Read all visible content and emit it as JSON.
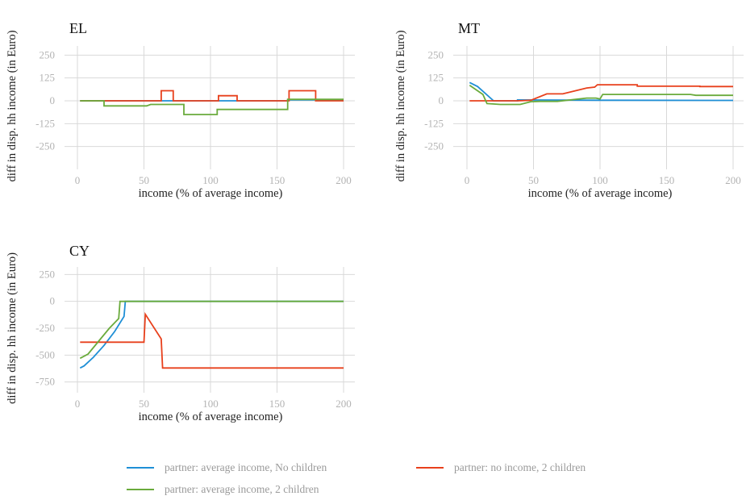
{
  "chart_data": [
    {
      "type": "line",
      "title": "EL",
      "xlabel": "income (% of average income)",
      "ylabel": "diff in disp. hh income (in Euro)",
      "xlim": [
        0,
        200
      ],
      "ylim": [
        -375,
        300
      ],
      "xticks": [
        0,
        50,
        100,
        150,
        200
      ],
      "yticks": [
        250,
        125,
        0,
        -125,
        -250
      ],
      "grid": true,
      "series": [
        {
          "name": "partner: average income, No children",
          "color": "#1f8fd6",
          "x": [
            2,
            158,
            158,
            200
          ],
          "y": [
            0,
            0,
            5,
            5
          ]
        },
        {
          "name": "partner: no income, 2 children",
          "color": "#e8401c",
          "x": [
            2,
            63,
            63,
            72,
            72,
            106,
            106,
            120,
            120,
            159,
            159,
            179,
            179,
            200
          ],
          "y": [
            0,
            0,
            55,
            55,
            0,
            0,
            28,
            28,
            0,
            0,
            55,
            55,
            0,
            0
          ]
        },
        {
          "name": "partner: average income, 2 children",
          "color": "#6aab3c",
          "x": [
            2,
            20,
            20,
            52,
            55,
            80,
            80,
            105,
            105,
            158,
            158,
            200
          ],
          "y": [
            0,
            0,
            -28,
            -28,
            -20,
            -20,
            -75,
            -75,
            -47,
            -47,
            8,
            8
          ]
        }
      ]
    },
    {
      "type": "line",
      "title": "MT",
      "xlabel": "income (% of average income)",
      "ylabel": "diff in disp. hh income (in Euro)",
      "xlim": [
        0,
        200
      ],
      "ylim": [
        -375,
        300
      ],
      "xticks": [
        0,
        50,
        100,
        150,
        200
      ],
      "yticks": [
        250,
        125,
        0,
        -125,
        -250
      ],
      "grid": true,
      "series": [
        {
          "name": "partner: average income, No children",
          "color": "#1f8fd6",
          "x": [
            2,
            8,
            20,
            38,
            38,
            100,
            200
          ],
          "y": [
            100,
            78,
            0,
            0,
            5,
            3,
            2
          ]
        },
        {
          "name": "partner: no income, 2 children",
          "color": "#e8401c",
          "x": [
            2,
            20,
            38,
            48,
            60,
            72,
            90,
            96,
            98,
            128,
            128,
            175,
            175,
            200
          ],
          "y": [
            0,
            0,
            0,
            3,
            38,
            38,
            70,
            75,
            88,
            88,
            80,
            80,
            78,
            78
          ]
        },
        {
          "name": "partner: average income, 2 children",
          "color": "#6aab3c",
          "x": [
            2,
            12,
            15,
            25,
            40,
            48,
            55,
            68,
            90,
            97,
            100,
            102,
            168,
            172,
            200
          ],
          "y": [
            85,
            35,
            -15,
            -20,
            -20,
            -5,
            -3,
            -3,
            15,
            15,
            10,
            35,
            35,
            30,
            30
          ]
        }
      ]
    },
    {
      "type": "line",
      "title": "CY",
      "xlabel": "income (% of average income)",
      "ylabel": "diff in disp. hh income (in Euro)",
      "xlim": [
        0,
        200
      ],
      "ylim": [
        -850,
        320
      ],
      "xticks": [
        0,
        50,
        100,
        150,
        200
      ],
      "yticks": [
        250,
        0,
        -250,
        -500,
        -750
      ],
      "grid": true,
      "series": [
        {
          "name": "partner: average income, No children",
          "color": "#1f8fd6",
          "x": [
            2,
            5,
            12,
            20,
            28,
            35,
            36,
            200
          ],
          "y": [
            -620,
            -600,
            -520,
            -410,
            -280,
            -140,
            0,
            0
          ]
        },
        {
          "name": "partner: no income, 2 children",
          "color": "#e8401c",
          "x": [
            2,
            50,
            51,
            63,
            64,
            200
          ],
          "y": [
            -380,
            -380,
            -120,
            -350,
            -620,
            -620
          ]
        },
        {
          "name": "partner: average income, 2 children",
          "color": "#6aab3c",
          "x": [
            2,
            8,
            16,
            24,
            31,
            32,
            200
          ],
          "y": [
            -530,
            -490,
            -370,
            -250,
            -160,
            0,
            0
          ]
        }
      ]
    }
  ],
  "legend": {
    "placement": "bottom",
    "items": [
      {
        "label": "partner: average income, No children",
        "color": "#1f8fd6"
      },
      {
        "label": "partner: no income, 2 children",
        "color": "#e8401c"
      },
      {
        "label": "partner: average income, 2 children",
        "color": "#6aab3c"
      }
    ]
  }
}
